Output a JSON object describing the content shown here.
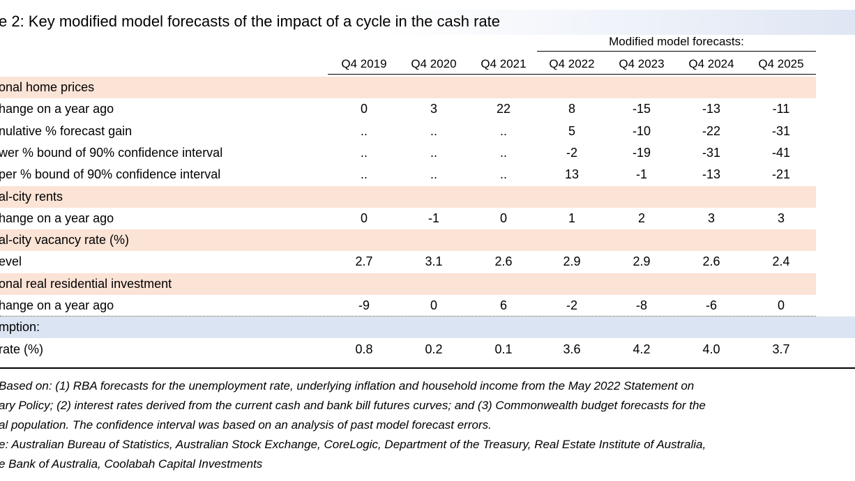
{
  "title": "e 2: Key modified model forecasts of the impact of a cycle in the cash rate",
  "modified_label": "Modified model forecasts:",
  "columns": [
    "Q4 2019",
    "Q4 2020",
    "Q4 2021",
    "Q4 2022",
    "Q4 2023",
    "Q4 2024",
    "Q4 2025"
  ],
  "sections": [
    {
      "title": "onal home prices",
      "rows": [
        {
          "label": "hange on a year ago",
          "values": [
            "0",
            "3",
            "22",
            "8",
            "-15",
            "-13",
            "-11"
          ]
        },
        {
          "label": "nulative % forecast gain",
          "values": [
            "..",
            "..",
            "..",
            "5",
            "-10",
            "-22",
            "-31"
          ]
        },
        {
          "label": "wer % bound of 90% confidence interval",
          "values": [
            "..",
            "..",
            "..",
            "-2",
            "-19",
            "-31",
            "-41"
          ]
        },
        {
          "label": "per % bound of 90% confidence interval",
          "values": [
            "..",
            "..",
            "..",
            "13",
            "-1",
            "-13",
            "-21"
          ]
        }
      ]
    },
    {
      "title": "al-city rents",
      "rows": [
        {
          "label": "hange on a year ago",
          "values": [
            "0",
            "-1",
            "0",
            "1",
            "2",
            "3",
            "3"
          ]
        }
      ]
    },
    {
      "title": "al-city vacancy rate (%)",
      "rows": [
        {
          "label": "evel",
          "values": [
            "2.7",
            "3.1",
            "2.6",
            "2.9",
            "2.9",
            "2.6",
            "2.4"
          ]
        }
      ]
    },
    {
      "title": "onal real residential investment",
      "rows": [
        {
          "label": "hange on a year ago",
          "values": [
            "-9",
            "0",
            "6",
            "-2",
            "-8",
            "-6",
            "0"
          ]
        }
      ]
    },
    {
      "title": "mption:",
      "rows": [
        {
          "label": "rate (%)",
          "values": [
            "0.8",
            "0.2",
            "0.1",
            "3.6",
            "4.2",
            "4.0",
            "3.7"
          ]
        }
      ]
    }
  ],
  "notes": [
    "Based on: (1)  RBA forecasts for the unemployment rate, underlying inflation and household income from  the May 2022 Statement on",
    "ary Policy; (2) interest rates derived from the current cash and bank bill futures curves; and (3) Commonwealth budget forecasts for the",
    "al population. The confidence interval was based on an analysis of past model forecast errors.",
    "e: Australian Bureau of Statistics, Australian Stock Exchange, CoreLogic, Department of the Treasury, Real Estate Institute of Australia,",
    "e Bank of Australia, Coolabah Capital Investments"
  ]
}
